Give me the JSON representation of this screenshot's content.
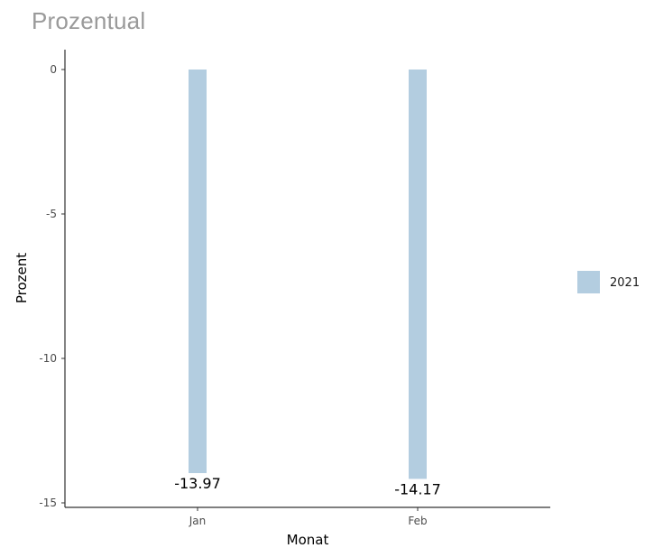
{
  "header": {
    "title": "Prozentual"
  },
  "colors": {
    "bar": "#b3cde0",
    "axis": "#333333",
    "header_text": "#9a9a9a"
  },
  "chart_data": {
    "type": "bar",
    "title": "",
    "xlabel": "Monat",
    "ylabel": "Prozent",
    "categories": [
      "Jan",
      "Feb"
    ],
    "series": [
      {
        "name": "2021",
        "values": [
          -13.97,
          -14.17
        ],
        "data_labels": [
          "-13.97",
          "-14.17"
        ]
      }
    ],
    "ylim": [
      -15,
      0
    ],
    "y_ticks": [
      0,
      -5,
      -10,
      -15
    ],
    "y_tick_labels": [
      "0",
      "-5",
      "-10",
      "-15"
    ],
    "grid": false,
    "legend": "right"
  }
}
